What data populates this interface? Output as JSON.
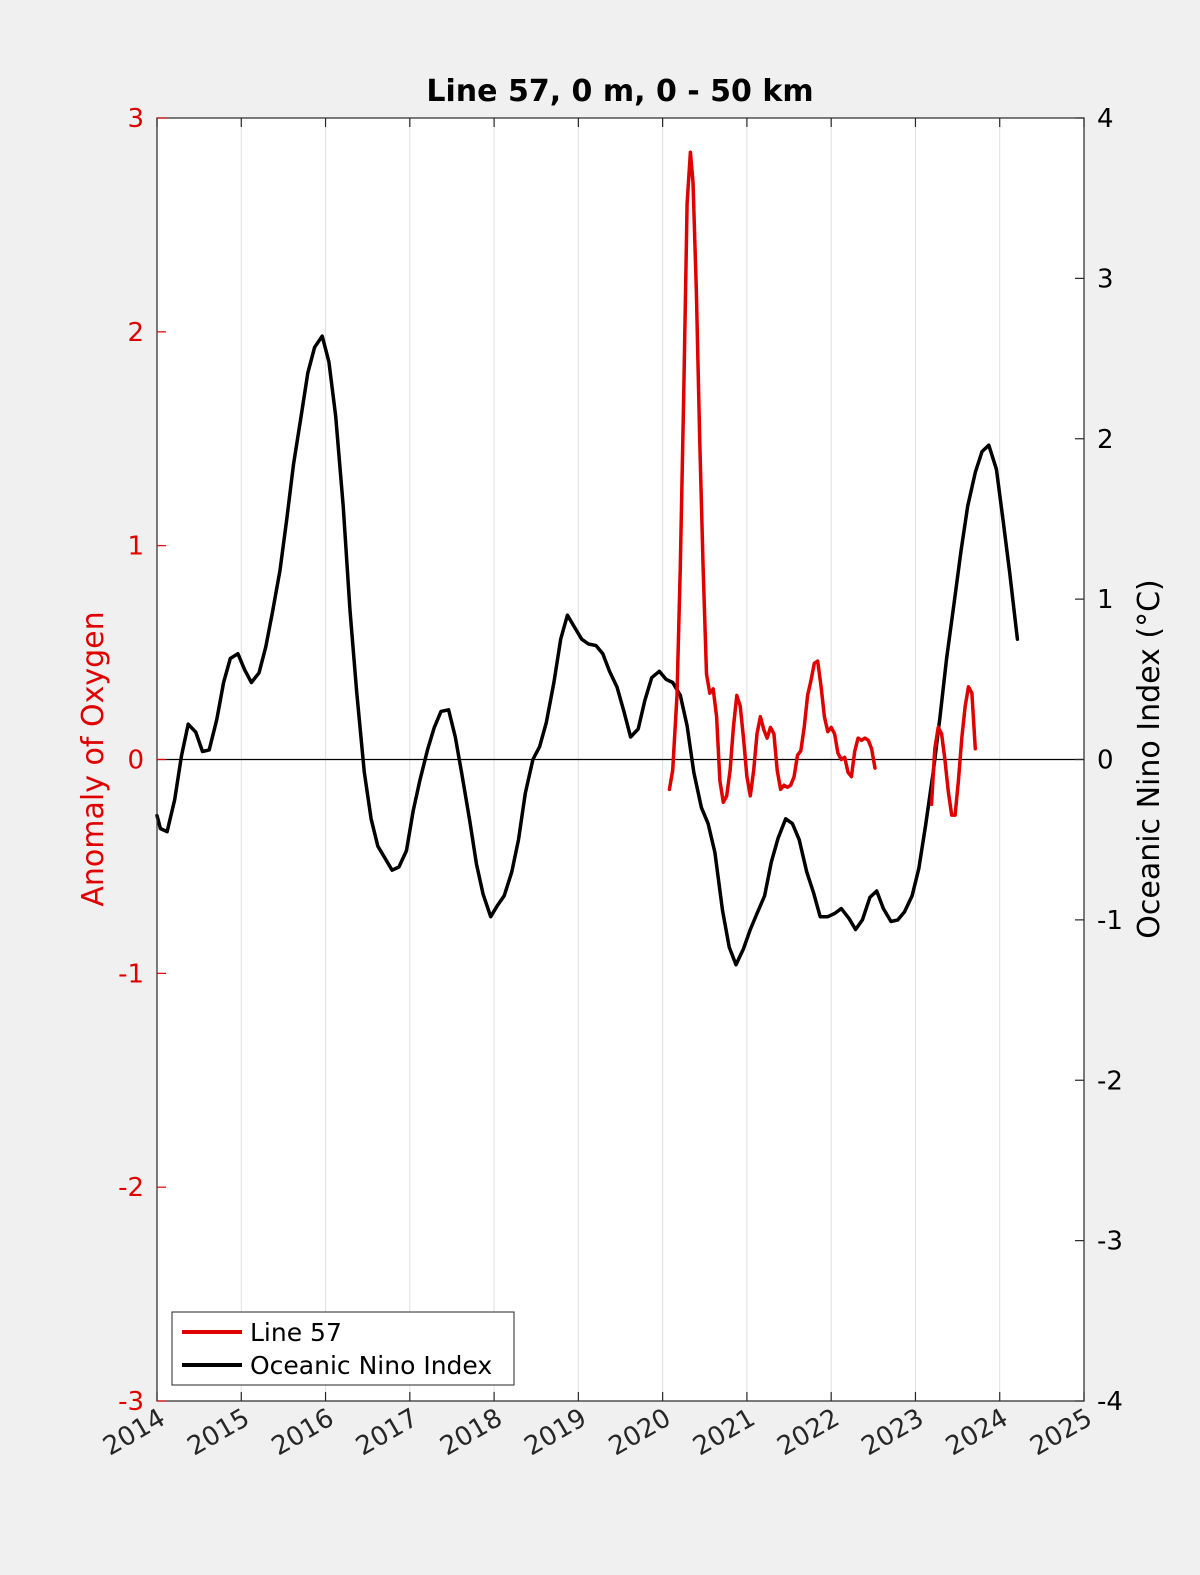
{
  "chart_data": {
    "type": "line",
    "title": "Line 57, 0 m, 0 - 50 km",
    "ylabel_left": "Anomaly of Oxygen",
    "ylabel_right": "Oceanic Nino Index (°C)",
    "xlim": [
      2014,
      2025
    ],
    "ylim_left": [
      -3,
      3
    ],
    "ylim_right": [
      -4,
      4
    ],
    "x_ticks": [
      2014,
      2015,
      2016,
      2017,
      2018,
      2019,
      2020,
      2021,
      2022,
      2023,
      2024,
      2025
    ],
    "y_ticks_left": [
      -3,
      -2,
      -1,
      0,
      1,
      2,
      3
    ],
    "y_ticks_right": [
      -4,
      -3,
      -2,
      -1,
      0,
      1,
      2,
      3,
      4
    ],
    "grid": "vertical lines at x ticks",
    "zero_line": true,
    "legend_position": "bottom-left",
    "colors": {
      "line57": "#e00000",
      "oni": "#000000",
      "left_axis": "#e00000",
      "right_axis": "#000000"
    },
    "series": [
      {
        "name": "Line 57",
        "axis": "left",
        "color": "#e00000",
        "segments": [
          [
            [
              2020.08,
              -0.14
            ],
            [
              2020.12,
              -0.05
            ],
            [
              2020.17,
              0.3
            ],
            [
              2020.21,
              0.9
            ],
            [
              2020.25,
              1.7
            ],
            [
              2020.29,
              2.6
            ],
            [
              2020.33,
              2.84
            ],
            [
              2020.36,
              2.7
            ],
            [
              2020.4,
              2.2
            ],
            [
              2020.44,
              1.5
            ],
            [
              2020.48,
              0.9
            ],
            [
              2020.52,
              0.4
            ],
            [
              2020.56,
              0.31
            ],
            [
              2020.6,
              0.33
            ],
            [
              2020.64,
              0.2
            ],
            [
              2020.68,
              -0.1
            ],
            [
              2020.72,
              -0.2
            ],
            [
              2020.76,
              -0.17
            ],
            [
              2020.8,
              -0.05
            ],
            [
              2020.84,
              0.15
            ],
            [
              2020.88,
              0.3
            ],
            [
              2020.92,
              0.25
            ],
            [
              2020.96,
              0.1
            ],
            [
              2021.0,
              -0.08
            ],
            [
              2021.04,
              -0.17
            ],
            [
              2021.08,
              -0.05
            ],
            [
              2021.12,
              0.12
            ],
            [
              2021.16,
              0.2
            ],
            [
              2021.2,
              0.14
            ],
            [
              2021.24,
              0.1
            ],
            [
              2021.28,
              0.15
            ],
            [
              2021.32,
              0.12
            ],
            [
              2021.36,
              -0.05
            ],
            [
              2021.4,
              -0.14
            ],
            [
              2021.44,
              -0.12
            ],
            [
              2021.48,
              -0.13
            ],
            [
              2021.52,
              -0.12
            ],
            [
              2021.56,
              -0.08
            ],
            [
              2021.6,
              0.02
            ],
            [
              2021.64,
              0.04
            ],
            [
              2021.68,
              0.15
            ],
            [
              2021.72,
              0.3
            ],
            [
              2021.76,
              0.37
            ],
            [
              2021.8,
              0.45
            ],
            [
              2021.84,
              0.46
            ],
            [
              2021.88,
              0.34
            ],
            [
              2021.92,
              0.2
            ],
            [
              2021.96,
              0.13
            ],
            [
              2022.0,
              0.15
            ],
            [
              2022.04,
              0.12
            ],
            [
              2022.08,
              0.03
            ],
            [
              2022.12,
              0.0
            ],
            [
              2022.16,
              0.01
            ],
            [
              2022.2,
              -0.06
            ],
            [
              2022.24,
              -0.08
            ],
            [
              2022.28,
              0.04
            ],
            [
              2022.32,
              0.1
            ],
            [
              2022.36,
              0.09
            ],
            [
              2022.4,
              0.1
            ],
            [
              2022.44,
              0.09
            ],
            [
              2022.48,
              0.05
            ],
            [
              2022.52,
              -0.04
            ]
          ],
          [
            [
              2023.19,
              -0.21
            ],
            [
              2023.23,
              0.05
            ],
            [
              2023.27,
              0.15
            ],
            [
              2023.31,
              0.12
            ],
            [
              2023.35,
              0.0
            ],
            [
              2023.39,
              -0.15
            ],
            [
              2023.43,
              -0.26
            ],
            [
              2023.47,
              -0.26
            ],
            [
              2023.51,
              -0.1
            ],
            [
              2023.55,
              0.1
            ],
            [
              2023.59,
              0.25
            ],
            [
              2023.63,
              0.34
            ],
            [
              2023.67,
              0.31
            ],
            [
              2023.71,
              0.05
            ]
          ]
        ]
      },
      {
        "name": "Oceanic Nino Index",
        "axis": "right",
        "color": "#000000",
        "points": [
          [
            2014.0,
            -0.35
          ],
          [
            2014.04,
            -0.43
          ],
          [
            2014.12,
            -0.45
          ],
          [
            2014.21,
            -0.25
          ],
          [
            2014.29,
            0.02
          ],
          [
            2014.37,
            0.22
          ],
          [
            2014.46,
            0.17
          ],
          [
            2014.54,
            0.05
          ],
          [
            2014.62,
            0.06
          ],
          [
            2014.71,
            0.25
          ],
          [
            2014.79,
            0.48
          ],
          [
            2014.87,
            0.63
          ],
          [
            2014.96,
            0.66
          ],
          [
            2015.04,
            0.56
          ],
          [
            2015.12,
            0.48
          ],
          [
            2015.21,
            0.54
          ],
          [
            2015.29,
            0.7
          ],
          [
            2015.37,
            0.92
          ],
          [
            2015.46,
            1.18
          ],
          [
            2015.54,
            1.5
          ],
          [
            2015.62,
            1.84
          ],
          [
            2015.71,
            2.14
          ],
          [
            2015.79,
            2.41
          ],
          [
            2015.87,
            2.57
          ],
          [
            2015.96,
            2.64
          ],
          [
            2016.04,
            2.48
          ],
          [
            2016.12,
            2.14
          ],
          [
            2016.21,
            1.58
          ],
          [
            2016.29,
            0.93
          ],
          [
            2016.37,
            0.42
          ],
          [
            2016.46,
            -0.08
          ],
          [
            2016.54,
            -0.37
          ],
          [
            2016.62,
            -0.54
          ],
          [
            2016.71,
            -0.62
          ],
          [
            2016.79,
            -0.69
          ],
          [
            2016.87,
            -0.67
          ],
          [
            2016.96,
            -0.57
          ],
          [
            2017.04,
            -0.32
          ],
          [
            2017.12,
            -0.13
          ],
          [
            2017.21,
            0.06
          ],
          [
            2017.29,
            0.2
          ],
          [
            2017.37,
            0.3
          ],
          [
            2017.46,
            0.31
          ],
          [
            2017.54,
            0.14
          ],
          [
            2017.62,
            -0.1
          ],
          [
            2017.71,
            -0.38
          ],
          [
            2017.79,
            -0.65
          ],
          [
            2017.87,
            -0.84
          ],
          [
            2017.96,
            -0.98
          ],
          [
            2018.04,
            -0.91
          ],
          [
            2018.12,
            -0.85
          ],
          [
            2018.21,
            -0.7
          ],
          [
            2018.29,
            -0.5
          ],
          [
            2018.37,
            -0.21
          ],
          [
            2018.46,
            0.0
          ],
          [
            2018.54,
            0.08
          ],
          [
            2018.62,
            0.23
          ],
          [
            2018.71,
            0.48
          ],
          [
            2018.79,
            0.75
          ],
          [
            2018.87,
            0.9
          ],
          [
            2018.96,
            0.82
          ],
          [
            2019.04,
            0.75
          ],
          [
            2019.12,
            0.72
          ],
          [
            2019.21,
            0.71
          ],
          [
            2019.29,
            0.66
          ],
          [
            2019.37,
            0.55
          ],
          [
            2019.46,
            0.45
          ],
          [
            2019.54,
            0.3
          ],
          [
            2019.62,
            0.14
          ],
          [
            2019.71,
            0.19
          ],
          [
            2019.79,
            0.37
          ],
          [
            2019.87,
            0.51
          ],
          [
            2019.96,
            0.55
          ],
          [
            2020.04,
            0.5
          ],
          [
            2020.12,
            0.48
          ],
          [
            2020.21,
            0.4
          ],
          [
            2020.29,
            0.21
          ],
          [
            2020.37,
            -0.08
          ],
          [
            2020.46,
            -0.3
          ],
          [
            2020.54,
            -0.4
          ],
          [
            2020.62,
            -0.58
          ],
          [
            2020.71,
            -0.94
          ],
          [
            2020.79,
            -1.17
          ],
          [
            2020.87,
            -1.28
          ],
          [
            2020.96,
            -1.18
          ],
          [
            2021.04,
            -1.06
          ],
          [
            2021.12,
            -0.96
          ],
          [
            2021.21,
            -0.85
          ],
          [
            2021.29,
            -0.64
          ],
          [
            2021.37,
            -0.49
          ],
          [
            2021.46,
            -0.37
          ],
          [
            2021.54,
            -0.4
          ],
          [
            2021.62,
            -0.5
          ],
          [
            2021.71,
            -0.7
          ],
          [
            2021.79,
            -0.83
          ],
          [
            2021.87,
            -0.98
          ],
          [
            2021.96,
            -0.98
          ],
          [
            2022.04,
            -0.96
          ],
          [
            2022.12,
            -0.93
          ],
          [
            2022.21,
            -0.99
          ],
          [
            2022.29,
            -1.06
          ],
          [
            2022.37,
            -1.0
          ],
          [
            2022.46,
            -0.86
          ],
          [
            2022.54,
            -0.82
          ],
          [
            2022.62,
            -0.93
          ],
          [
            2022.71,
            -1.01
          ],
          [
            2022.79,
            -1.0
          ],
          [
            2022.87,
            -0.95
          ],
          [
            2022.96,
            -0.85
          ],
          [
            2023.04,
            -0.68
          ],
          [
            2023.12,
            -0.41
          ],
          [
            2023.21,
            -0.08
          ],
          [
            2023.29,
            0.26
          ],
          [
            2023.37,
            0.63
          ],
          [
            2023.46,
            0.98
          ],
          [
            2023.54,
            1.3
          ],
          [
            2023.62,
            1.58
          ],
          [
            2023.71,
            1.79
          ],
          [
            2023.79,
            1.92
          ],
          [
            2023.87,
            1.96
          ],
          [
            2023.96,
            1.81
          ],
          [
            2024.04,
            1.49
          ],
          [
            2024.12,
            1.16
          ],
          [
            2024.21,
            0.75
          ]
        ]
      }
    ]
  }
}
